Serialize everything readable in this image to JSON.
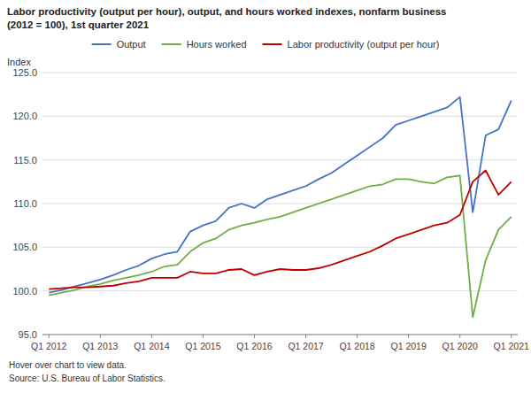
{
  "chart_data": {
    "type": "line",
    "title": "Labor productivity (output per hour), output, and hours worked indexes, nonfarm business",
    "subtitle": "(2012 = 100), 1st quarter 2021",
    "ylabel": "Index",
    "annotations": [
      "Hover over chart to view data.",
      "Source: U.S. Bureau of Labor Statistics."
    ],
    "categories": [
      "Q1 2012",
      null,
      null,
      null,
      "Q1 2013",
      null,
      null,
      null,
      "Q1 2014",
      null,
      null,
      null,
      "Q1 2015",
      null,
      null,
      null,
      "Q1 2016",
      null,
      null,
      null,
      "Q1 2017",
      null,
      null,
      null,
      "Q1 2018",
      null,
      null,
      null,
      "Q1 2019",
      null,
      null,
      null,
      "Q1 2020",
      null,
      null,
      null,
      "Q1 2021"
    ],
    "series": [
      {
        "name": "Output",
        "color": "#4472c4",
        "values": [
          99.8,
          100.1,
          100.5,
          100.9,
          101.3,
          101.8,
          102.4,
          102.9,
          103.7,
          104.2,
          104.5,
          106.8,
          107.5,
          108.0,
          109.5,
          110.0,
          109.5,
          110.5,
          111.0,
          111.5,
          112.0,
          112.8,
          113.5,
          114.5,
          115.5,
          116.5,
          117.5,
          119.0,
          119.5,
          120.0,
          120.5,
          121.0,
          122.2,
          109.0,
          117.8,
          118.5,
          121.8
        ]
      },
      {
        "name": "Hours worked",
        "color": "#70ad47",
        "values": [
          99.5,
          99.8,
          100.1,
          100.5,
          100.8,
          101.2,
          101.5,
          101.8,
          102.2,
          102.8,
          103.0,
          104.5,
          105.5,
          106.0,
          107.0,
          107.5,
          107.8,
          108.2,
          108.5,
          109.0,
          109.5,
          110.0,
          110.5,
          111.0,
          111.5,
          112.0,
          112.2,
          112.8,
          112.8,
          112.5,
          112.3,
          113.0,
          113.2,
          97.0,
          103.5,
          107.0,
          108.5
        ]
      },
      {
        "name": "Labor productivity (output per hour)",
        "color": "#c00000",
        "values": [
          100.2,
          100.3,
          100.4,
          100.4,
          100.5,
          100.6,
          100.9,
          101.1,
          101.5,
          101.5,
          101.5,
          102.2,
          102.0,
          102.0,
          102.4,
          102.5,
          101.8,
          102.2,
          102.5,
          102.4,
          102.4,
          102.6,
          103.0,
          103.5,
          104.0,
          104.5,
          105.2,
          106.0,
          106.5,
          107.0,
          107.5,
          107.8,
          108.7,
          112.5,
          113.8,
          111.0,
          112.5
        ]
      }
    ],
    "ylim": [
      95.0,
      125.0
    ],
    "yticks": [
      {
        "value": 95.0,
        "label": "95.0"
      },
      {
        "value": 100.0,
        "label": "100.0"
      },
      {
        "value": 105.0,
        "label": "105.0"
      },
      {
        "value": 110.0,
        "label": "110.0"
      },
      {
        "value": 115.0,
        "label": "115.0"
      },
      {
        "value": 120.0,
        "label": "120.0"
      },
      {
        "value": 125.0,
        "label": "125.0"
      }
    ],
    "grid": true,
    "legend": "top"
  }
}
